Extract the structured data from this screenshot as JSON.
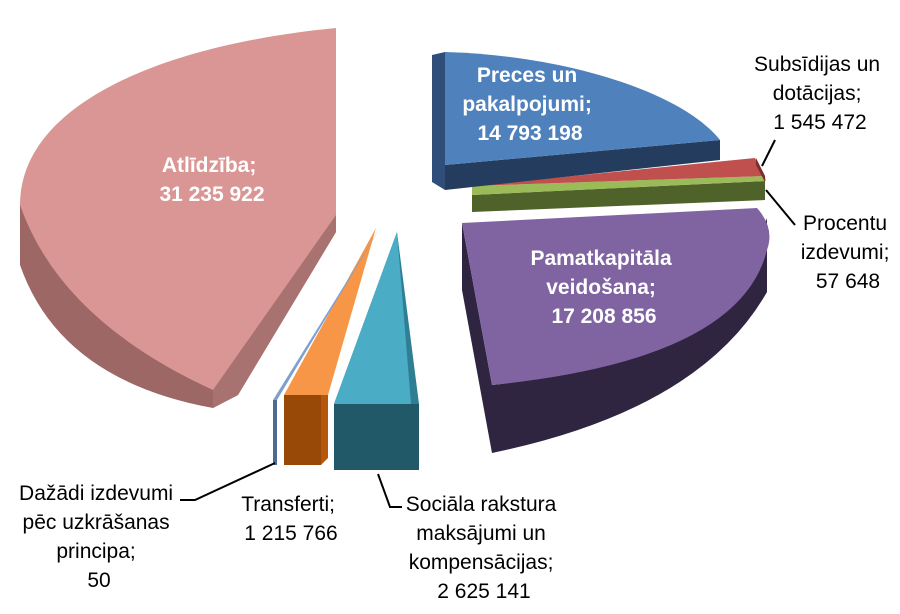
{
  "chart_data": {
    "type": "pie",
    "title": "",
    "legend": "none",
    "slices": [
      {
        "label": [
          "Preces un",
          "pakalpojumi;"
        ],
        "value": "14 793 198",
        "num": 14793198,
        "color": "#4f81bd"
      },
      {
        "label": [
          "Subsīdijas un",
          "dotācijas;"
        ],
        "value": "1 545 472",
        "num": 1545472,
        "color": "#c0504d"
      },
      {
        "label": [
          "Procentu",
          "izdevumi;"
        ],
        "value": "57 648",
        "num": 57648,
        "color": "#9bbb59"
      },
      {
        "label": [
          "Pamatkapitāla",
          "veidošana;"
        ],
        "value": "17 208 856",
        "num": 17208856,
        "color": "#8064a2"
      },
      {
        "label": [
          "Sociāla rakstura",
          "maksājumi un",
          "kompensācijas;"
        ],
        "value": "2 625 141",
        "num": 2625141,
        "color": "#4bacc6"
      },
      {
        "label": [
          "Transferti;"
        ],
        "value": "1 215 766",
        "num": 1215766,
        "color": "#f79646"
      },
      {
        "label": [
          "Dažādi izdevumi",
          "pēc uzkrāšanas",
          "principa;"
        ],
        "value": "50",
        "num": 50,
        "color": "#7f9fcf"
      },
      {
        "label": [
          "Atlīdzība;"
        ],
        "value": "31 235 922",
        "num": 31235922,
        "color": "#d99694"
      }
    ]
  }
}
